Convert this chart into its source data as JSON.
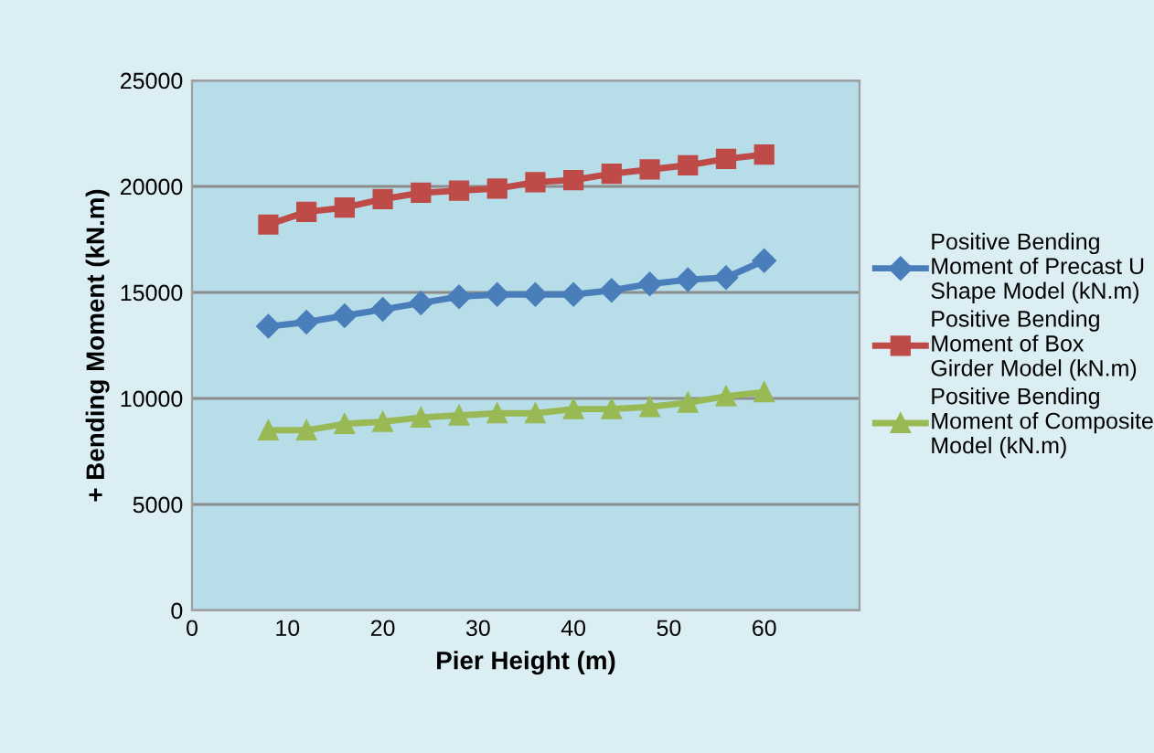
{
  "chart_data": {
    "type": "line",
    "xlabel": "Pier Height (m)",
    "ylabel": "+ Bending Moment (kN.m)",
    "x": [
      8,
      12,
      16,
      20,
      24,
      28,
      32,
      36,
      40,
      44,
      48,
      52,
      56,
      60
    ],
    "xlim": [
      0,
      70
    ],
    "xticks": [
      0,
      10,
      20,
      30,
      40,
      50,
      60
    ],
    "ylim": [
      0,
      25000
    ],
    "yticks": [
      0,
      5000,
      10000,
      15000,
      20000,
      25000
    ],
    "grid": "y",
    "legend": "right",
    "series": [
      {
        "name": "Positive Bending Moment of Precast U Shape Model (kN.m)",
        "color": "#4a7ebb",
        "marker": "diamond",
        "values": [
          13400,
          13600,
          13900,
          14200,
          14500,
          14800,
          14900,
          14900,
          14900,
          15100,
          15400,
          15600,
          15700,
          16500
        ]
      },
      {
        "name": "Positive Bending Moment of Box Girder Model (kN.m)",
        "color": "#be4b48",
        "marker": "square",
        "values": [
          18200,
          18800,
          19000,
          19400,
          19700,
          19800,
          19900,
          20200,
          20300,
          20600,
          20800,
          21000,
          21300,
          21500
        ]
      },
      {
        "name": "Positive Bending Moment of Composite Model (kN.m)",
        "color": "#98b954",
        "marker": "triangle",
        "values": [
          8500,
          8500,
          8800,
          8900,
          9100,
          9200,
          9300,
          9300,
          9500,
          9500,
          9600,
          9800,
          10100,
          10300
        ]
      }
    ]
  }
}
